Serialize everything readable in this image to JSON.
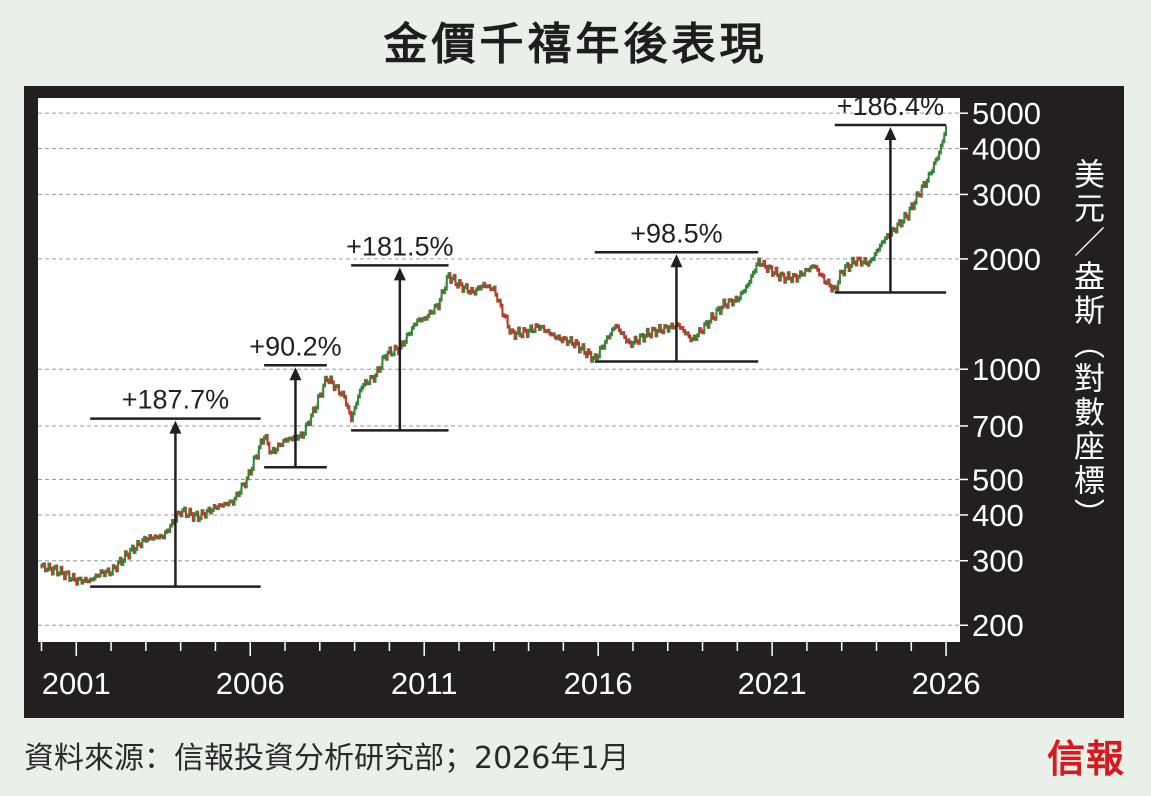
{
  "header": {
    "title": "金價千禧年後表現"
  },
  "footer": {
    "source": "資料來源：信報投資分析研究部；2026年1月",
    "logo_text": "信報"
  },
  "colors": {
    "frame": "#231f20",
    "plot_bg": "#ffffff",
    "candle_up": "#2e8b3a",
    "candle_down": "#c8332b",
    "annotation": "#231f20",
    "axis_text": "#ffffff",
    "brand": "#d71920"
  },
  "chart_data": {
    "type": "line",
    "title": "金價千禧年後表現",
    "ylabel": "美元／盎斯（對數座標）",
    "y_scale": "log",
    "ylim": [
      180,
      5500
    ],
    "xlim": [
      1999.9,
      2026.4
    ],
    "y_ticks": [
      200,
      300,
      400,
      500,
      700,
      1000,
      2000,
      3000,
      4000,
      5000
    ],
    "x_ticks": [
      2001,
      2006,
      2011,
      2016,
      2021,
      2026
    ],
    "grid": "horizontal dashed",
    "series": [
      {
        "x": [
          2000.0,
          2000.4,
          2000.7,
          2001.0,
          2001.4,
          2001.7,
          2002.0,
          2002.5,
          2003.0,
          2003.5,
          2004.0,
          2004.5,
          2005.0,
          2005.5,
          2005.9,
          2006.4,
          2006.6,
          2007.0,
          2007.5,
          2007.9,
          2008.2,
          2008.7,
          2008.9,
          2009.2,
          2009.6,
          2009.9,
          2010.3,
          2010.8,
          2011.0,
          2011.4,
          2011.7,
          2012.0,
          2012.4,
          2012.7,
          2013.0,
          2013.5,
          2013.9,
          2014.3,
          2014.8,
          2015.3,
          2015.9,
          2016.5,
          2016.9,
          2017.5,
          2017.9,
          2018.3,
          2018.7,
          2019.0,
          2019.6,
          2020.0,
          2020.3,
          2020.6,
          2020.9,
          2021.3,
          2021.7,
          2022.2,
          2022.5,
          2022.8,
          2023.0,
          2023.4,
          2023.8,
          2024.2,
          2024.5,
          2024.9,
          2025.2,
          2025.5,
          2025.8,
          2026.0
        ],
        "y": [
          289,
          283,
          275,
          265,
          265,
          278,
          280,
          315,
          345,
          350,
          410,
          395,
          420,
          435,
          500,
          660,
          590,
          640,
          660,
          800,
          950,
          840,
          730,
          900,
          960,
          1100,
          1140,
          1360,
          1370,
          1500,
          1800,
          1700,
          1620,
          1700,
          1650,
          1250,
          1260,
          1310,
          1220,
          1180,
          1065,
          1320,
          1170,
          1260,
          1290,
          1320,
          1200,
          1290,
          1500,
          1550,
          1700,
          1970,
          1880,
          1780,
          1780,
          1920,
          1750,
          1640,
          1850,
          1980,
          1950,
          2250,
          2400,
          2650,
          3000,
          3350,
          3900,
          4550
        ]
      }
    ],
    "annotations": [
      {
        "label": "+187.7%",
        "x_from": 2001.4,
        "x_to": 2006.3,
        "low": 255,
        "high": 733
      },
      {
        "label": "+90.2%",
        "x_from": 2006.4,
        "x_to": 2008.2,
        "low": 540,
        "high": 1025
      },
      {
        "label": "+181.5%",
        "x_from": 2008.9,
        "x_to": 2011.7,
        "low": 681,
        "high": 1920
      },
      {
        "label": "+98.5%",
        "x_from": 2015.9,
        "x_to": 2020.6,
        "low": 1050,
        "high": 2085
      },
      {
        "label": "+186.4%",
        "x_from": 2022.8,
        "x_to": 2026.0,
        "low": 1620,
        "high": 4640
      }
    ]
  }
}
